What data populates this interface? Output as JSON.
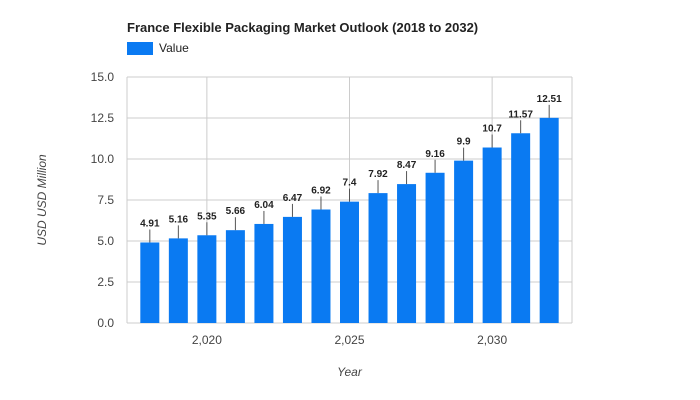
{
  "chart_data": {
    "type": "bar",
    "title": "France Flexible Packaging Market Outlook (2018 to 2032)",
    "xlabel": "Year",
    "ylabel": "USD USD Million",
    "x": [
      2018,
      2019,
      2020,
      2021,
      2022,
      2023,
      2024,
      2025,
      2026,
      2027,
      2028,
      2029,
      2030,
      2031,
      2032
    ],
    "series": [
      {
        "name": "Value",
        "values": [
          4.91,
          5.16,
          5.35,
          5.66,
          6.04,
          6.47,
          6.92,
          7.4,
          7.92,
          8.47,
          9.16,
          9.9,
          10.7,
          11.57,
          12.51
        ]
      }
    ],
    "ylim": [
      0,
      15
    ],
    "yticks": [
      "0.0",
      "2.5",
      "5.0",
      "7.5",
      "10.0",
      "12.5",
      "15.0"
    ],
    "xticks": [
      2020,
      2025,
      2030
    ],
    "xtick_labels": [
      "2,020",
      "2,025",
      "2,030"
    ],
    "grid": true,
    "legend_position": "top-left",
    "bar_color": "#0a7af2"
  }
}
